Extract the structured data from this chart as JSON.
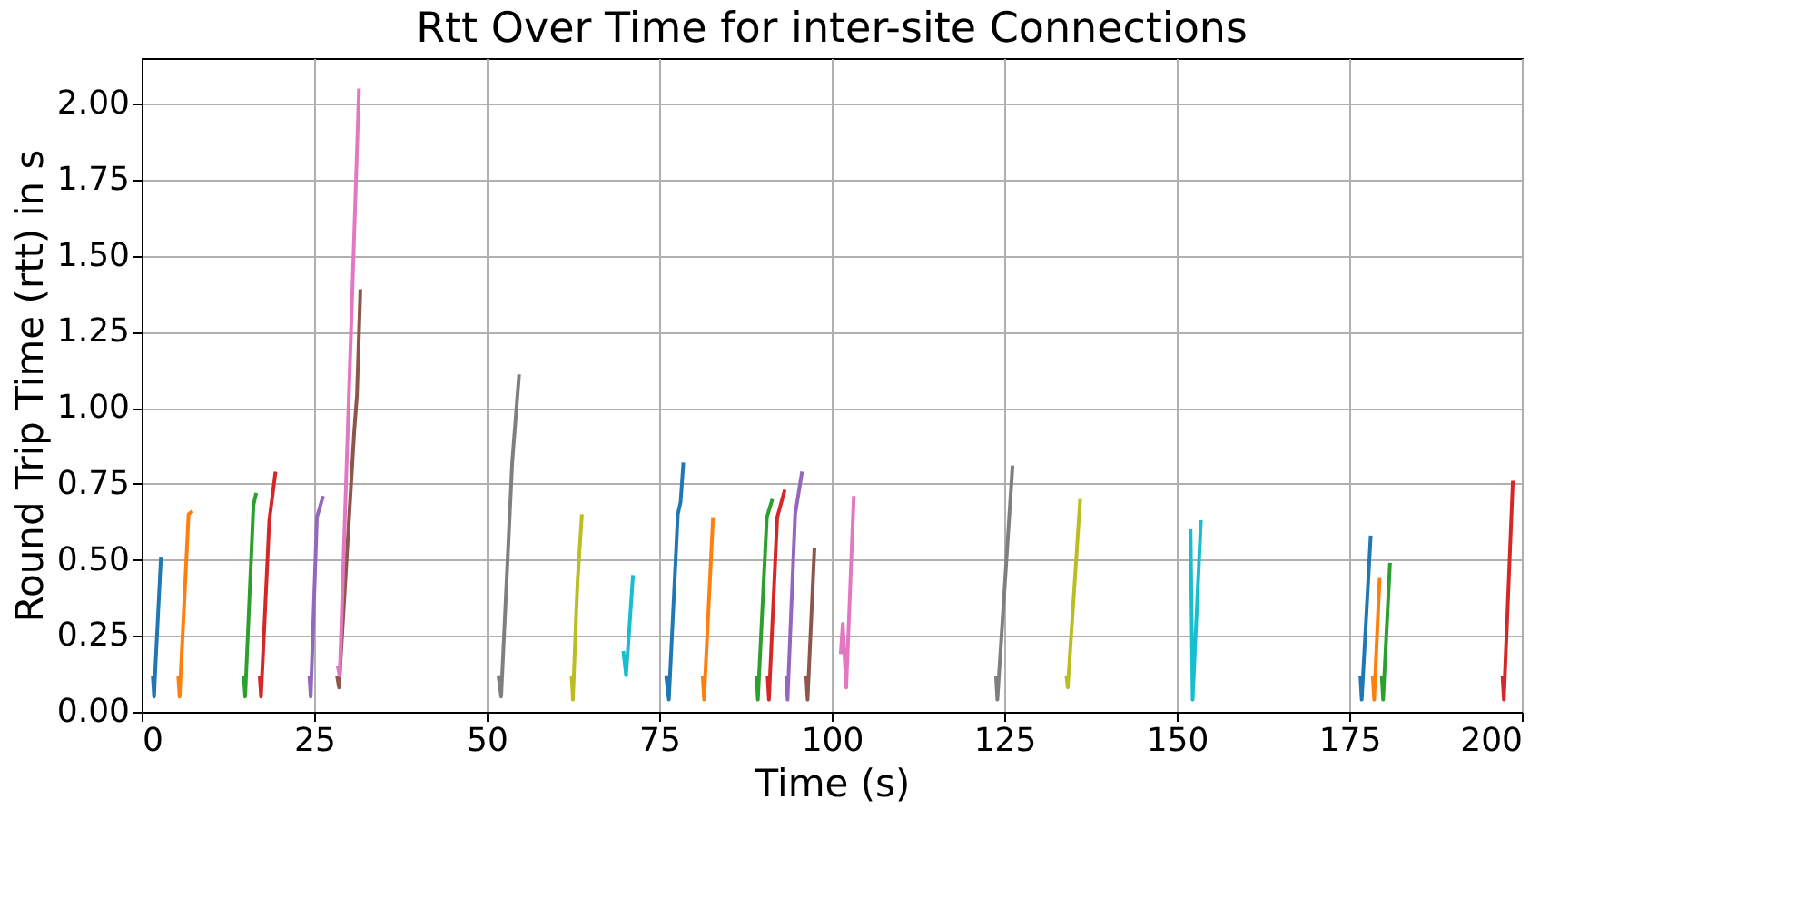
{
  "chart_data": {
    "type": "line",
    "title": "Rtt Over Time for inter-site Connections",
    "xlabel": "Time (s)",
    "ylabel": "Round Trip Time (rtt) in s",
    "xlim": [
      0,
      200
    ],
    "xticks": [
      0,
      25,
      50,
      75,
      100,
      125,
      150,
      175,
      200
    ],
    "ylim": [
      0,
      2.15
    ],
    "yticks": [
      {
        "value": 0,
        "label": "0.00"
      },
      {
        "value": 0.25,
        "label": "0.25"
      },
      {
        "value": 0.5,
        "label": "0.50"
      },
      {
        "value": 0.75,
        "label": "0.75"
      },
      {
        "value": 1,
        "label": "1.00"
      },
      {
        "value": 1.25,
        "label": "1.25"
      },
      {
        "value": 1.5,
        "label": "1.50"
      },
      {
        "value": 1.75,
        "label": "1.75"
      },
      {
        "value": 2,
        "label": "2.00"
      }
    ],
    "grid": true,
    "series": [
      {
        "color": "#1f77b4",
        "x": [
          1.6,
          1.8,
          2.0,
          2.8
        ],
        "values": [
          0.12,
          0.05,
          0.15,
          0.51
        ]
      },
      {
        "color": "#ff7f0e",
        "x": [
          5.3,
          5.5,
          6.8,
          7.4
        ],
        "values": [
          0.12,
          0.05,
          0.65,
          0.66
        ]
      },
      {
        "color": "#2ca02c",
        "x": [
          14.8,
          15.0,
          16.2,
          16.6
        ],
        "values": [
          0.12,
          0.05,
          0.68,
          0.72
        ]
      },
      {
        "color": "#d62728",
        "x": [
          17.1,
          17.3,
          18.5,
          19.4
        ],
        "values": [
          0.12,
          0.05,
          0.63,
          0.79
        ]
      },
      {
        "color": "#9467bd",
        "x": [
          24.3,
          24.5,
          25.4,
          26.3
        ],
        "values": [
          0.12,
          0.05,
          0.64,
          0.71
        ]
      },
      {
        "color": "#8c564b",
        "x": [
          28.3,
          28.6,
          30.8,
          31.2,
          31.7
        ],
        "values": [
          0.12,
          0.08,
          0.92,
          1.04,
          1.39
        ]
      },
      {
        "color": "#e377c2",
        "x": [
          28.4,
          28.7,
          31.5
        ],
        "values": [
          0.15,
          0.12,
          2.05
        ]
      },
      {
        "color": "#7f7f7f",
        "x": [
          51.7,
          52.1,
          53.7,
          54.7
        ],
        "values": [
          0.12,
          0.05,
          0.82,
          1.11
        ]
      },
      {
        "color": "#bcbd22",
        "x": [
          62.3,
          62.5,
          63.0,
          63.2,
          63.8
        ],
        "values": [
          0.12,
          0.04,
          0.34,
          0.44,
          0.65
        ]
      },
      {
        "color": "#17becf",
        "x": [
          69.8,
          70.2,
          70.6,
          71.2
        ],
        "values": [
          0.2,
          0.12,
          0.25,
          0.45
        ]
      },
      {
        "color": "#1f77b4",
        "x": [
          76.0,
          76.4,
          77.7,
          78.1,
          78.5
        ],
        "values": [
          0.12,
          0.04,
          0.65,
          0.69,
          0.82
        ]
      },
      {
        "color": "#ff7f0e",
        "x": [
          81.3,
          81.5,
          82.8
        ],
        "values": [
          0.12,
          0.04,
          0.64
        ]
      },
      {
        "color": "#2ca02c",
        "x": [
          89.1,
          89.3,
          90.6,
          91.4
        ],
        "values": [
          0.12,
          0.04,
          0.64,
          0.7
        ]
      },
      {
        "color": "#d62728",
        "x": [
          90.7,
          90.9,
          92.1,
          93.2
        ],
        "values": [
          0.12,
          0.04,
          0.64,
          0.73
        ]
      },
      {
        "color": "#9467bd",
        "x": [
          93.4,
          93.6,
          94.7,
          95.7
        ],
        "values": [
          0.12,
          0.04,
          0.65,
          0.79
        ]
      },
      {
        "color": "#8c564b",
        "x": [
          96.3,
          96.5,
          97.5
        ],
        "values": [
          0.12,
          0.04,
          0.54
        ]
      },
      {
        "color": "#e377c2",
        "x": [
          101.3,
          101.6,
          102.1,
          103.2
        ],
        "values": [
          0.19,
          0.29,
          0.08,
          0.71
        ]
      },
      {
        "color": "#7f7f7f",
        "x": [
          123.8,
          124.0,
          126.2
        ],
        "values": [
          0.12,
          0.04,
          0.81
        ]
      },
      {
        "color": "#bcbd22",
        "x": [
          134.0,
          134.2,
          136.0
        ],
        "values": [
          0.12,
          0.08,
          0.7
        ]
      },
      {
        "color": "#17becf",
        "x": [
          152.0,
          152.3,
          153.5
        ],
        "values": [
          0.6,
          0.04,
          0.63
        ]
      },
      {
        "color": "#1f77b4",
        "x": [
          176.6,
          176.8,
          178.1
        ],
        "values": [
          0.12,
          0.04,
          0.58
        ]
      },
      {
        "color": "#ff7f0e",
        "x": [
          178.4,
          178.6,
          179.4
        ],
        "values": [
          0.12,
          0.04,
          0.44
        ]
      },
      {
        "color": "#2ca02c",
        "x": [
          179.7,
          179.9,
          180.9
        ],
        "values": [
          0.12,
          0.04,
          0.49
        ]
      },
      {
        "color": "#d62728",
        "x": [
          197.2,
          197.4,
          198.7
        ],
        "values": [
          0.12,
          0.04,
          0.76
        ]
      }
    ]
  }
}
